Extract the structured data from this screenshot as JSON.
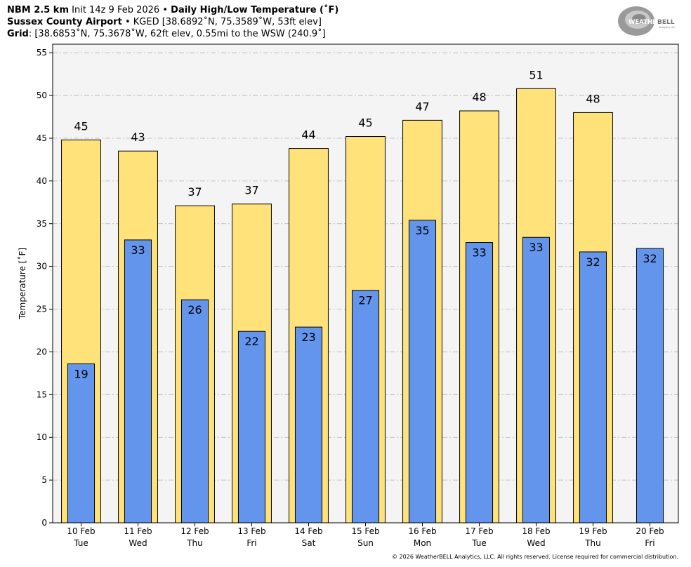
{
  "header": {
    "line1_bold": "NBM 2.5 km",
    "line1_init": "Init 14z 9 Feb 2026",
    "line1_sep": "•",
    "line1_title": "Daily High/Low Temperature (˚F)",
    "line2_bold": "Sussex County Airport",
    "line2_sep": "•",
    "line2_rest": "KGED [38.6892˚N, 75.3589˚W, 53ft elev]",
    "line3_bold": "Grid",
    "line3_rest": ": [38.6853˚N, 75.3678˚W, 62ft elev, 0.55mi to the WSW (240.9˚]"
  },
  "logo": {
    "text_weather": "WEATHER",
    "text_bell": "BELL",
    "sub": "Analytics LLC"
  },
  "copyright": "© 2026 WeatherBELL Analytics, LLC. All rights reserved. License required for commercial distribution.",
  "chart_data": {
    "type": "bar",
    "title": "Daily High/Low Temperature (˚F)",
    "ylabel": "Temperature [˚F]",
    "ylim": [
      0,
      56
    ],
    "yticks": [
      0,
      5,
      10,
      15,
      20,
      25,
      30,
      35,
      40,
      45,
      50,
      55
    ],
    "grid": true,
    "categories": [
      "10 Feb",
      "11 Feb",
      "12 Feb",
      "13 Feb",
      "14 Feb",
      "15 Feb",
      "16 Feb",
      "17 Feb",
      "18 Feb",
      "19 Feb",
      "20 Feb"
    ],
    "weekdays": [
      "Tue",
      "Wed",
      "Thu",
      "Fri",
      "Sat",
      "Sun",
      "Mon",
      "Tue",
      "Wed",
      "Thu",
      "Fri"
    ],
    "series": [
      {
        "name": "High",
        "color": "#ffe27a",
        "values": [
          44.8,
          43.5,
          37.1,
          37.3,
          43.8,
          45.2,
          47.1,
          48.2,
          50.8,
          48.0,
          null
        ],
        "labels": [
          "45",
          "43",
          "37",
          "37",
          "44",
          "45",
          "47",
          "48",
          "51",
          "48",
          null
        ]
      },
      {
        "name": "Low",
        "color": "#6495ed",
        "values": [
          18.6,
          33.1,
          26.1,
          22.4,
          22.9,
          27.2,
          35.4,
          32.8,
          33.4,
          31.7,
          32.1
        ],
        "labels": [
          "19",
          "33",
          "26",
          "22",
          "23",
          "27",
          "35",
          "33",
          "33",
          "32",
          "32"
        ]
      }
    ]
  }
}
